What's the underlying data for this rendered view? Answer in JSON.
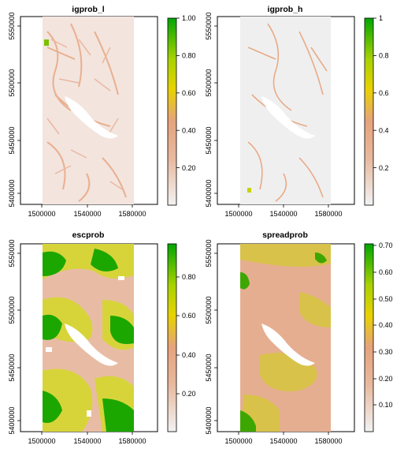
{
  "chart_data": [
    {
      "type": "heatmap",
      "title": "igprob_l",
      "x_ticks": [
        "1500000",
        "1540000",
        "1580000"
      ],
      "y_ticks": [
        "5400000",
        "5450000",
        "5500000",
        "5550000"
      ],
      "legend_ticks": [
        "1.00",
        "0.80",
        "0.60",
        "0.40",
        "0.20"
      ],
      "zlim": [
        0,
        1
      ],
      "legend_placement": "right",
      "colors": {
        "low": "#f2f2f2",
        "mid_low": "#e6a37b",
        "mid": "#e8d200",
        "high": "#00a600"
      }
    },
    {
      "type": "heatmap",
      "title": "igprob_h",
      "x_ticks": [
        "1500000",
        "1540000",
        "1580000"
      ],
      "y_ticks": [
        "5400000",
        "5450000",
        "5500000",
        "5550000"
      ],
      "legend_ticks": [
        "1",
        "0.8",
        "0.6",
        "0.4",
        "0.2"
      ],
      "zlim": [
        0,
        1
      ],
      "legend_placement": "right",
      "colors": {
        "low": "#f2f2f2",
        "mid_low": "#e6a37b",
        "mid": "#e8d200",
        "high": "#00a600"
      }
    },
    {
      "type": "heatmap",
      "title": "escprob",
      "x_ticks": [
        "1500000",
        "1540000",
        "1580000"
      ],
      "y_ticks": [
        "5400000",
        "5450000",
        "5500000",
        "5550000"
      ],
      "legend_ticks": [
        "0.80",
        "0.60",
        "0.40",
        "0.20"
      ],
      "zlim": [
        0,
        0.97
      ],
      "legend_placement": "right",
      "colors": {
        "low": "#f2f2f2",
        "mid_low": "#e6a37b",
        "mid": "#e8d200",
        "high": "#00a600"
      }
    },
    {
      "type": "heatmap",
      "title": "spreadprob",
      "x_ticks": [
        "1500000",
        "1540000",
        "1580000"
      ],
      "y_ticks": [
        "5400000",
        "5450000",
        "5500000",
        "5550000"
      ],
      "legend_ticks": [
        "0.70",
        "0.60",
        "0.50",
        "0.40",
        "0.30",
        "0.20",
        "0.10"
      ],
      "zlim": [
        0,
        0.71
      ],
      "legend_placement": "right",
      "colors": {
        "low": "#f2f2f2",
        "mid_low": "#e6a37b",
        "mid": "#e8d200",
        "high": "#00a600"
      }
    }
  ]
}
